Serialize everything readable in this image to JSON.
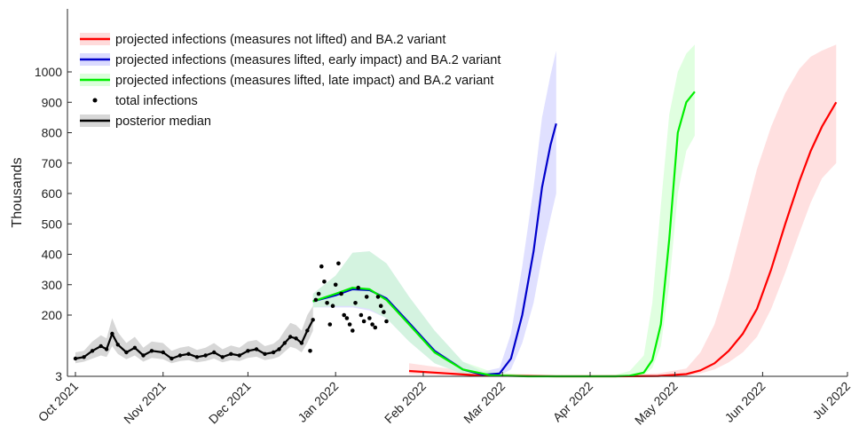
{
  "chart_data": {
    "type": "line",
    "title": "",
    "xlabel": "",
    "ylabel": "Thousands",
    "x_ticks": [
      "Oct 2021",
      "Nov 2021",
      "Dec 2021",
      "Jan 2022",
      "Feb 2022",
      "Mar 2022",
      "Apr 2022",
      "May 2022",
      "Jun 2022",
      "Jul 2022"
    ],
    "y_ticks": [
      "3",
      "200",
      "300",
      "400",
      "500",
      "600",
      "700",
      "800",
      "900",
      "1000"
    ],
    "xlim": [
      "2021-10-01",
      "2022-07-01"
    ],
    "ylim": [
      0,
      1100
    ],
    "legend_position": "top-left",
    "grid": false,
    "series": [
      {
        "name": "projected infections (measures not lifted) and BA.2 variant",
        "color": "#ff0000",
        "band_color": "#ffcccc",
        "x": [
          "2022-01-27",
          "2022-02-20",
          "2022-03-20",
          "2022-04-10",
          "2022-04-25",
          "2022-05-05",
          "2022-05-10",
          "2022-05-15",
          "2022-05-20",
          "2022-05-25",
          "2022-05-30",
          "2022-06-04",
          "2022-06-09",
          "2022-06-14",
          "2022-06-18",
          "2022-06-22",
          "2022-06-27"
        ],
        "y": [
          20,
          6,
          3,
          3,
          4,
          10,
          22,
          45,
          85,
          140,
          220,
          350,
          500,
          640,
          740,
          820,
          900
        ],
        "y_lower": [
          10,
          3,
          2,
          2,
          3,
          5,
          12,
          25,
          48,
          80,
          130,
          220,
          340,
          470,
          570,
          650,
          700
        ],
        "y_upper": [
          45,
          15,
          6,
          8,
          12,
          28,
          80,
          170,
          320,
          500,
          680,
          820,
          930,
          1010,
          1050,
          1070,
          1090
        ]
      },
      {
        "name": "projected infections (measures lifted, early impact) and BA.2 variant",
        "color": "#0000cc",
        "band_color": "#ccccff",
        "x": [
          "2021-12-24",
          "2022-01-01",
          "2022-01-07",
          "2022-01-13",
          "2022-01-19",
          "2022-01-27",
          "2022-02-05",
          "2022-02-15",
          "2022-02-22",
          "2022-02-28",
          "2022-03-04",
          "2022-03-08",
          "2022-03-12",
          "2022-03-15",
          "2022-03-18",
          "2022-03-20"
        ],
        "y": [
          245,
          265,
          285,
          282,
          255,
          175,
          85,
          25,
          8,
          12,
          60,
          200,
          410,
          620,
          760,
          830
        ],
        "y_lower": [
          225,
          225,
          225,
          215,
          190,
          115,
          45,
          10,
          3,
          5,
          25,
          110,
          240,
          390,
          520,
          600
        ],
        "y_upper": [
          270,
          330,
          405,
          410,
          370,
          260,
          150,
          50,
          18,
          30,
          140,
          360,
          620,
          850,
          990,
          1070
        ]
      },
      {
        "name": "projected infections (measures lifted, late impact) and BA.2 variant",
        "color": "#00ee00",
        "band_color": "#ccffcc",
        "x": [
          "2021-12-24",
          "2022-01-01",
          "2022-01-07",
          "2022-01-13",
          "2022-01-19",
          "2022-01-27",
          "2022-02-05",
          "2022-02-15",
          "2022-02-25",
          "2022-03-10",
          "2022-03-25",
          "2022-04-10",
          "2022-04-15",
          "2022-04-20",
          "2022-04-23",
          "2022-04-26",
          "2022-04-29",
          "2022-05-02",
          "2022-05-05",
          "2022-05-08"
        ],
        "y": [
          245,
          270,
          290,
          285,
          250,
          170,
          80,
          25,
          6,
          3,
          3,
          3,
          5,
          15,
          55,
          170,
          450,
          800,
          900,
          935
        ],
        "y_lower": [
          225,
          230,
          230,
          220,
          190,
          115,
          45,
          10,
          3,
          2,
          2,
          2,
          3,
          8,
          30,
          100,
          300,
          600,
          740,
          790
        ],
        "y_upper": [
          270,
          330,
          405,
          410,
          370,
          260,
          150,
          50,
          18,
          6,
          5,
          8,
          20,
          70,
          240,
          560,
          860,
          1000,
          1060,
          1090
        ]
      },
      {
        "name": "total infections",
        "color": "#000000",
        "x": [
          "2021-12-23",
          "2021-12-25",
          "2021-12-26",
          "2021-12-27",
          "2021-12-28",
          "2021-12-29",
          "2021-12-30",
          "2021-12-31",
          "2022-01-01",
          "2022-01-02",
          "2022-01-03",
          "2022-01-04",
          "2022-01-05",
          "2022-01-06",
          "2022-01-07",
          "2022-01-08",
          "2022-01-09",
          "2022-01-10",
          "2022-01-11",
          "2022-01-12",
          "2022-01-13",
          "2022-01-14",
          "2022-01-15",
          "2022-01-16",
          "2022-01-17",
          "2022-01-18",
          "2022-01-19"
        ],
        "y": [
          85,
          250,
          270,
          360,
          310,
          240,
          170,
          230,
          300,
          370,
          270,
          200,
          190,
          170,
          150,
          240,
          290,
          200,
          180,
          260,
          190,
          170,
          160,
          260,
          230,
          210,
          180
        ]
      },
      {
        "name": "posterior median",
        "color": "#000000",
        "band_color": "#d3d3d3",
        "x": [
          "2021-10-01",
          "2021-10-04",
          "2021-10-07",
          "2021-10-10",
          "2021-10-12",
          "2021-10-14",
          "2021-10-16",
          "2021-10-19",
          "2021-10-22",
          "2021-10-25",
          "2021-10-28",
          "2021-11-01",
          "2021-11-04",
          "2021-11-07",
          "2021-11-10",
          "2021-11-13",
          "2021-11-16",
          "2021-11-19",
          "2021-11-22",
          "2021-11-25",
          "2021-11-28",
          "2021-12-01",
          "2021-12-04",
          "2021-12-07",
          "2021-12-10",
          "2021-12-12",
          "2021-12-14",
          "2021-12-16",
          "2021-12-18",
          "2021-12-20",
          "2021-12-22",
          "2021-12-24"
        ],
        "y": [
          60,
          65,
          85,
          100,
          90,
          140,
          105,
          80,
          95,
          70,
          85,
          80,
          60,
          70,
          75,
          65,
          70,
          80,
          65,
          75,
          70,
          85,
          90,
          75,
          80,
          90,
          110,
          130,
          125,
          110,
          150,
          185
        ],
        "y_lower": [
          45,
          50,
          60,
          70,
          65,
          100,
          75,
          58,
          70,
          50,
          62,
          58,
          45,
          52,
          55,
          48,
          52,
          60,
          48,
          55,
          52,
          62,
          66,
          55,
          60,
          66,
          82,
          98,
          92,
          80,
          110,
          150
        ],
        "y_upper": [
          80,
          85,
          115,
          135,
          125,
          190,
          145,
          110,
          130,
          95,
          115,
          110,
          85,
          95,
          100,
          88,
          95,
          110,
          90,
          102,
          95,
          115,
          120,
          100,
          108,
          122,
          150,
          175,
          168,
          150,
          200,
          230
        ]
      }
    ]
  }
}
